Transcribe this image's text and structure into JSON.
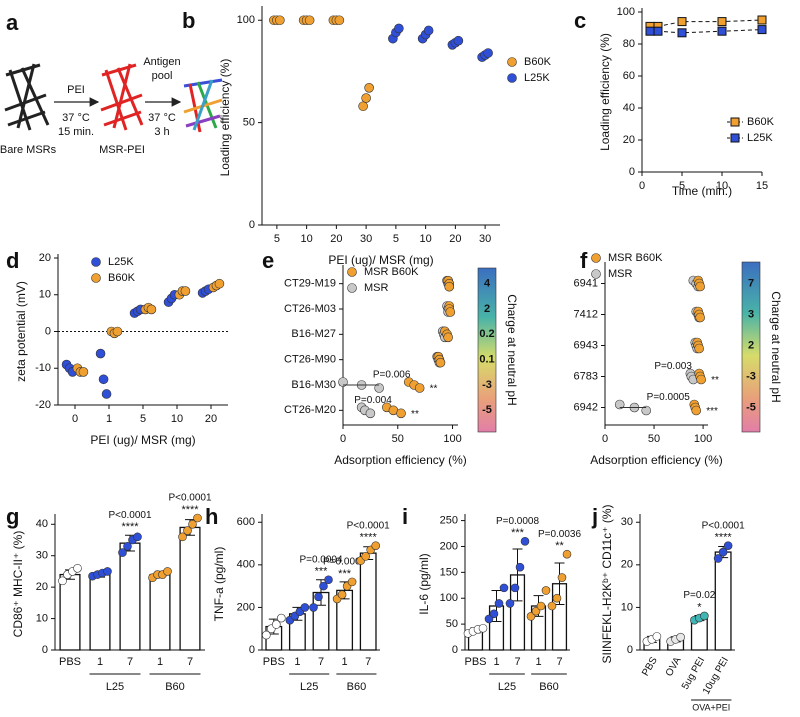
{
  "diagram": {
    "label": "a",
    "step1": "PEI",
    "step1_temp": "37 °C",
    "step1_time": "15 min.",
    "step2": [
      "Antigen",
      "pool"
    ],
    "step2_temp": "37 °C",
    "step2_time": "3 h",
    "start": "Bare MSRs",
    "middle": "MSR-PEI"
  },
  "chart_data": [
    {
      "label": "b",
      "type": "strip",
      "ylabel": "Loading efficiency (%)",
      "xlabel": "PEI (ug)/ MSR (mg)",
      "categories": [
        "5",
        "10",
        "20",
        "30",
        "5",
        "10",
        "20",
        "30"
      ],
      "ylim": [
        0,
        105
      ],
      "yticks": [
        0,
        50,
        100
      ],
      "series": [
        {
          "name": "B60K",
          "color": "#f0a030",
          "values": [
            [
              100,
              100,
              100
            ],
            [
              100,
              100,
              100
            ],
            [
              100,
              100,
              100
            ],
            [
              58,
              62,
              67
            ],
            null,
            null,
            null,
            null
          ]
        },
        {
          "name": "L25K",
          "color": "#2f4fd6",
          "values": [
            null,
            null,
            null,
            null,
            [
              91,
              94,
              96
            ],
            [
              91,
              93,
              95
            ],
            [
              88,
              89,
              90
            ],
            [
              82,
              83,
              84
            ]
          ]
        }
      ]
    },
    {
      "label": "c",
      "type": "line",
      "ylabel": "Loading efficiency (%)",
      "xlabel": "Time (min.)",
      "x": [
        1,
        2,
        5,
        10,
        15
      ],
      "xlim": [
        0,
        15
      ],
      "xticks": [
        0,
        5,
        10,
        15
      ],
      "ylim": [
        0,
        100
      ],
      "yticks": [
        0,
        20,
        40,
        60,
        80,
        100
      ],
      "series": [
        {
          "name": "B60K",
          "color": "#f0a030",
          "values": [
            91,
            91,
            94,
            94,
            95
          ]
        },
        {
          "name": "L25K",
          "color": "#2f4fd6",
          "values": [
            88,
            88,
            87,
            88,
            89
          ]
        }
      ]
    },
    {
      "label": "d",
      "type": "strip",
      "ylabel": "zeta potential (mV)",
      "xlabel": "PEI (ug)/ MSR (mg)",
      "categories": [
        "0",
        "1",
        "5",
        "10",
        "20"
      ],
      "ylim": [
        -20,
        20
      ],
      "yticks": [
        -20,
        -10,
        0,
        10,
        20
      ],
      "zero_line": true,
      "series": [
        {
          "name": "L25K",
          "color": "#2f4fd6",
          "values": [
            [
              -9,
              -10,
              -11
            ],
            [
              -6,
              -13,
              -17
            ],
            [
              5,
              5.5,
              6
            ],
            [
              8,
              9,
              10
            ],
            [
              10.5,
              11,
              11.5
            ]
          ]
        },
        {
          "name": "B60K",
          "color": "#f0a030",
          "values": [
            [
              -10,
              -11,
              -11
            ],
            [
              0,
              -0.5,
              0
            ],
            [
              6,
              6.5,
              6
            ],
            [
              10,
              11,
              11
            ],
            [
              12,
              12.5,
              13
            ]
          ]
        }
      ]
    },
    {
      "label": "e",
      "type": "strip-h",
      "xlabel": "Adsorption efficiency (%)",
      "categories": [
        "CT29-M19",
        "CT26-M03",
        "B16-M27",
        "CT26-M90",
        "B16-M30",
        "CT26-M20"
      ],
      "xlim": [
        0,
        105
      ],
      "xticks": [
        0,
        50,
        100
      ],
      "series": [
        {
          "name": "MSR B60K",
          "color": "#f0a030",
          "values": [
            [
              96,
              97,
              97
            ],
            [
              97,
              97,
              98
            ],
            [
              93,
              95,
              96
            ],
            [
              87,
              88,
              89
            ],
            [
              60,
              65,
              70
            ],
            [
              40,
              46,
              53
            ]
          ]
        },
        {
          "name": "MSR",
          "color": "#c8c8c8",
          "values": [
            [
              95,
              96,
              97
            ],
            [
              95,
              96,
              96
            ],
            [
              91,
              92,
              93
            ],
            [
              86,
              87,
              88
            ],
            [
              0,
              17,
              33
            ],
            [
              17,
              20,
              25
            ]
          ]
        }
      ],
      "p_labels": [
        null,
        null,
        null,
        null,
        "P=0.006",
        "P=0.004"
      ],
      "stars": [
        null,
        null,
        null,
        null,
        "**",
        "**"
      ],
      "colorbar": {
        "label": "Charge at neutral pH",
        "ticks": [
          4,
          2,
          0.2,
          0.1,
          -3,
          -5
        ]
      }
    },
    {
      "label": "f",
      "type": "strip-h",
      "xlabel": "Adsorption efficiency (%)",
      "categories": [
        "6941",
        "7412",
        "6943",
        "6783",
        "6942"
      ],
      "xlim": [
        0,
        105
      ],
      "xticks": [
        0,
        50,
        100
      ],
      "series": [
        {
          "name": "MSR B60K",
          "color": "#f0a030",
          "values": [
            [
              95,
              96,
              97
            ],
            [
              95,
              96,
              97
            ],
            [
              94,
              95,
              96
            ],
            [
              96,
              97,
              98
            ],
            [
              91,
              92,
              93
            ]
          ]
        },
        {
          "name": "MSR",
          "color": "#c8c8c8",
          "values": [
            [
              90,
              93,
              95
            ],
            [
              93,
              95,
              96
            ],
            [
              92,
              93,
              94
            ],
            [
              87,
              88,
              90
            ],
            [
              15,
              30,
              42
            ]
          ]
        }
      ],
      "p_labels": [
        null,
        null,
        null,
        "P=0.003",
        "P=0.0005"
      ],
      "stars": [
        null,
        null,
        null,
        "**",
        "***"
      ],
      "colorbar": {
        "label": "Charge at neutral pH",
        "ticks": [
          7,
          3,
          2,
          -3,
          -5
        ]
      }
    },
    {
      "label": "g",
      "type": "bar",
      "ylabel": "CD86⁺ MHC-II⁺ (%)",
      "categories": [
        "PBS",
        "1",
        "7",
        "1",
        "7"
      ],
      "groups": [
        {
          "name": "L25",
          "members": [
            1,
            2
          ]
        },
        {
          "name": "B60",
          "members": [
            3,
            4
          ]
        }
      ],
      "ylim": [
        0,
        42
      ],
      "yticks": [
        0,
        10,
        20,
        30,
        40
      ],
      "values": [
        24,
        24,
        34,
        24,
        39
      ],
      "errors": [
        1.5,
        0.8,
        2.5,
        1,
        2.5
      ],
      "points": [
        [
          22,
          24,
          25,
          26
        ],
        [
          23.5,
          24,
          24.5,
          25
        ],
        [
          31,
          33,
          35,
          36
        ],
        [
          23,
          24,
          24,
          25
        ],
        [
          36,
          38,
          40,
          42
        ]
      ],
      "point_colors": [
        "#ffffff",
        "#2f4fd6",
        "#2f4fd6",
        "#f0a030",
        "#f0a030"
      ],
      "p_labels": [
        null,
        null,
        "P<0.0001",
        null,
        "P<0.0001"
      ],
      "stars": [
        null,
        null,
        "****",
        null,
        "****"
      ]
    },
    {
      "label": "h",
      "type": "bar",
      "ylabel": "TNF-a (pg/ml)",
      "categories": [
        "PBS",
        "1",
        "7",
        "1",
        "7"
      ],
      "groups": [
        {
          "name": "L25",
          "members": [
            1,
            2
          ]
        },
        {
          "name": "B60",
          "members": [
            3,
            4
          ]
        }
      ],
      "ylim": [
        0,
        620
      ],
      "yticks": [
        0,
        200,
        400,
        600
      ],
      "values": [
        110,
        170,
        270,
        280,
        455
      ],
      "errors": [
        35,
        30,
        60,
        40,
        30
      ],
      "points": [
        [
          70,
          100,
          120,
          150
        ],
        [
          140,
          160,
          180,
          200
        ],
        [
          200,
          250,
          300,
          330
        ],
        [
          240,
          260,
          300,
          320
        ],
        [
          420,
          440,
          470,
          490
        ]
      ],
      "point_colors": [
        "#ffffff",
        "#2f4fd6",
        "#2f4fd6",
        "#f0a030",
        "#f0a030"
      ],
      "p_labels": [
        null,
        null,
        "P=0.0004",
        "P=0.0003",
        "P<0.0001"
      ],
      "stars": [
        null,
        null,
        "***",
        "***",
        "****"
      ]
    },
    {
      "label": "i",
      "type": "bar",
      "ylabel": "IL-6 (pg/ml)",
      "categories": [
        "PBS",
        "1",
        "7",
        "1",
        "7"
      ],
      "groups": [
        {
          "name": "L25",
          "members": [
            1,
            2
          ]
        },
        {
          "name": "B60",
          "members": [
            3,
            4
          ]
        }
      ],
      "ylim": [
        0,
        255
      ],
      "yticks": [
        0,
        50,
        100,
        150,
        200,
        250
      ],
      "values": [
        38,
        85,
        145,
        85,
        128
      ],
      "errors": [
        5,
        30,
        50,
        20,
        40
      ],
      "points": [
        [
          32,
          36,
          40,
          42
        ],
        [
          60,
          70,
          90,
          120
        ],
        [
          90,
          120,
          160,
          210
        ],
        [
          65,
          75,
          85,
          115
        ],
        [
          85,
          100,
          140,
          185
        ]
      ],
      "point_colors": [
        "#ffffff",
        "#2f4fd6",
        "#2f4fd6",
        "#f0a030",
        "#f0a030"
      ],
      "p_labels": [
        null,
        null,
        "P=0.0008",
        null,
        "P=0.0036"
      ],
      "stars": [
        null,
        null,
        "***",
        null,
        "**"
      ]
    },
    {
      "label": "j",
      "type": "bar",
      "ylabel": "SIINFEKL-H2Kᵇ⁺ CD11c⁺ (%)",
      "categories": [
        "PBS",
        "OVA",
        "5ug PEI",
        "10ug PEI"
      ],
      "groups": [
        {
          "name": "OVA+PEI",
          "members": [
            2,
            3
          ]
        }
      ],
      "ylim": [
        0,
        31
      ],
      "yticks": [
        0,
        10,
        20,
        30
      ],
      "values": [
        2.5,
        2.5,
        7.5,
        23
      ],
      "errors": [
        0.7,
        0.6,
        0.6,
        1.3
      ],
      "points": [
        [
          2,
          2.5,
          3.2
        ],
        [
          2,
          2.5,
          3
        ],
        [
          7,
          7.5,
          8
        ],
        [
          21.5,
          23,
          24.5
        ]
      ],
      "point_colors": [
        "#ffffff",
        "#e8e8e8",
        "#40b5b5",
        "#2f4fd6"
      ],
      "p_labels": [
        null,
        null,
        "P=0.02",
        "P<0.0001"
      ],
      "stars": [
        null,
        null,
        "*",
        "****"
      ]
    }
  ]
}
